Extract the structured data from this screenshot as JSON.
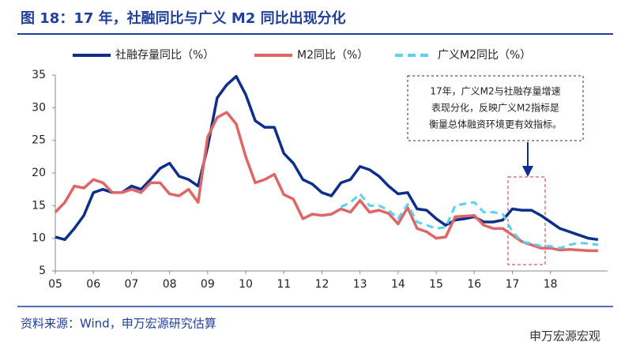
{
  "chart_data": {
    "type": "line",
    "title": "图 18：17 年，社融同比与广义 M2 同比出现分化",
    "source": "资料来源：Wind，申万宏源研究估算",
    "watermark": "申万宏源宏观",
    "annotation": [
      "17年，广义M2与社融存量增速",
      "表现分化，反映广义M2指标是",
      "衡量总体融资环境更有效指标。"
    ],
    "x": [
      2005,
      2005.25,
      2005.5,
      2005.75,
      2006,
      2006.25,
      2006.5,
      2006.75,
      2007,
      2007.25,
      2007.5,
      2007.75,
      2008,
      2008.25,
      2008.5,
      2008.75,
      2009,
      2009.25,
      2009.5,
      2009.75,
      2010,
      2010.25,
      2010.5,
      2010.75,
      2011,
      2011.25,
      2011.5,
      2011.75,
      2012,
      2012.25,
      2012.5,
      2012.75,
      2013,
      2013.25,
      2013.5,
      2013.75,
      2014,
      2014.25,
      2014.5,
      2014.75,
      2015,
      2015.25,
      2015.5,
      2015.75,
      2016,
      2016.25,
      2016.5,
      2016.75,
      2017,
      2017.25,
      2017.5,
      2017.75,
      2018,
      2018.25,
      2018.5,
      2018.75,
      2019,
      2019.25
    ],
    "series": [
      {
        "name": "社融存量同比（%）",
        "color": "#0d2f8c",
        "style": "solid",
        "values": [
          10.2,
          9.8,
          11.5,
          13.5,
          17,
          17.5,
          17,
          17,
          18,
          17.5,
          19,
          20.7,
          21.5,
          19.5,
          19,
          18,
          24,
          31.5,
          33.5,
          34.8,
          32,
          28,
          27,
          27,
          23,
          21.5,
          19,
          18.3,
          17,
          16.5,
          18.5,
          19,
          21,
          20.5,
          19.5,
          18,
          16.8,
          17,
          14.5,
          14.3,
          13,
          12,
          12.8,
          13,
          13.3,
          12.5,
          12.5,
          12.8,
          14.5,
          14.3,
          14.3,
          13.5,
          12.5,
          11.5,
          11,
          10.5,
          10,
          9.8
        ]
      },
      {
        "name": "M2同比（%）",
        "color": "#e06666",
        "style": "solid",
        "values": [
          14,
          15.5,
          18,
          17.7,
          19,
          18.5,
          17,
          17,
          17.5,
          17,
          18.5,
          18.5,
          16.8,
          16.5,
          17.5,
          15.5,
          25.5,
          28.5,
          29.3,
          27.5,
          22.5,
          18.5,
          19,
          19.8,
          16.7,
          16,
          13,
          13.7,
          13.5,
          13.7,
          14.5,
          14,
          15.8,
          14,
          14.3,
          13.8,
          12.2,
          14.7,
          11.5,
          11,
          10,
          10.2,
          13.3,
          13.4,
          13.5,
          12,
          11.5,
          11.5,
          10.5,
          9.5,
          9,
          8.5,
          8.5,
          8.2,
          8.3,
          8.2,
          8.1,
          8.1
        ]
      },
      {
        "name": "广义M2同比（%）",
        "color": "#5bd0f5",
        "style": "dashed",
        "values": [
          null,
          null,
          null,
          null,
          null,
          null,
          null,
          null,
          null,
          null,
          null,
          null,
          null,
          null,
          null,
          null,
          null,
          null,
          null,
          null,
          null,
          null,
          null,
          null,
          null,
          null,
          null,
          null,
          null,
          null,
          14.8,
          15.5,
          16.8,
          15,
          15,
          14.3,
          13,
          15.2,
          12.5,
          12,
          11.5,
          11.7,
          15,
          15.3,
          15.5,
          14,
          14,
          13.7,
          11,
          9.5,
          9.2,
          8.8,
          8.8,
          8.5,
          9,
          9.3,
          9.2,
          9
        ]
      }
    ],
    "xlim": [
      2005,
      2019.5
    ],
    "xticks": [
      {
        "value": 2005,
        "label": "05"
      },
      {
        "value": 2006,
        "label": "06"
      },
      {
        "value": 2007,
        "label": "07"
      },
      {
        "value": 2008,
        "label": "08"
      },
      {
        "value": 2009,
        "label": "09"
      },
      {
        "value": 2010,
        "label": "10"
      },
      {
        "value": 2011,
        "label": "11"
      },
      {
        "value": 2012,
        "label": "12"
      },
      {
        "value": 2013,
        "label": "13"
      },
      {
        "value": 2014,
        "label": "14"
      },
      {
        "value": 2015,
        "label": "15"
      },
      {
        "value": 2016,
        "label": "16"
      },
      {
        "value": 2017,
        "label": "17"
      },
      {
        "value": 2018,
        "label": "18"
      }
    ],
    "ylim": [
      5,
      35
    ],
    "yticks": [
      5,
      10,
      15,
      20,
      25,
      30,
      35
    ],
    "grid": false
  }
}
